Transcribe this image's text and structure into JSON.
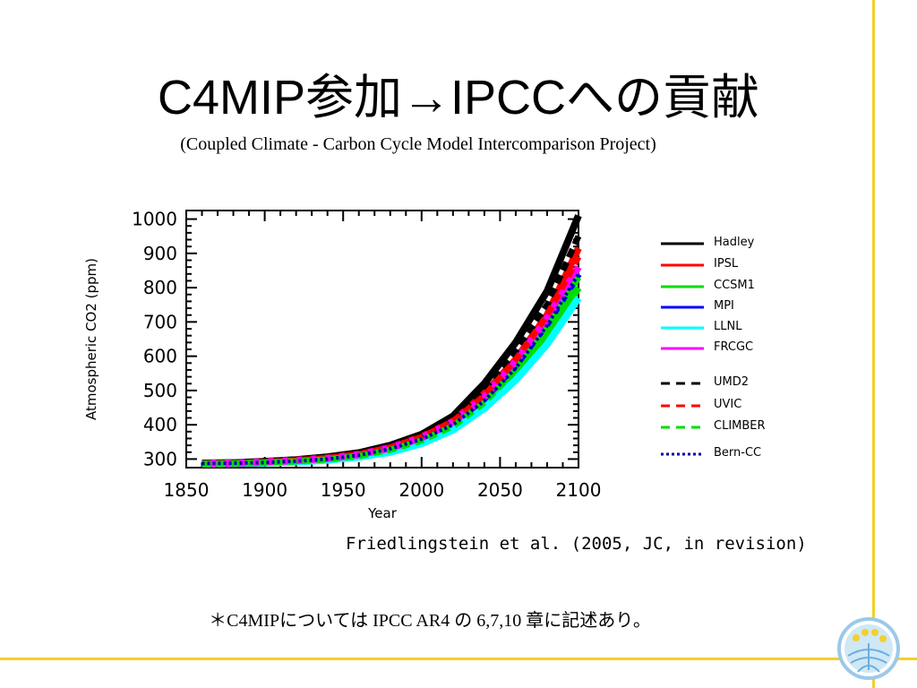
{
  "slide": {
    "title": "C4MIP参加→IPCCへの貢献",
    "subtitle": "(Coupled Climate - Carbon Cycle Model Intercomparison Project)",
    "citation": "Friedlingstein et al. (2005, JC, in revision)",
    "footnote": "＊C4MIPについては IPCC AR4 の 6,7,10 章に記述あり。",
    "accent_color": "#f3d02a"
  },
  "chart_data": {
    "type": "line",
    "xlabel": "Year",
    "ylabel": "Atmospheric CO2 (ppm)",
    "xlim": [
      1850,
      2100
    ],
    "ylim": [
      275,
      1025
    ],
    "xticks": [
      1850,
      1900,
      1950,
      2000,
      2050,
      2100
    ],
    "yticks": [
      300,
      400,
      500,
      600,
      700,
      800,
      900,
      1000
    ],
    "xtick_labels": [
      "1850",
      "1900",
      "1950",
      "2000",
      "2050",
      "2100"
    ],
    "ytick_labels": [
      "300",
      "400",
      "500",
      "600",
      "700",
      "800",
      "900",
      "1000"
    ],
    "grid": false,
    "legend_position": "right",
    "x": [
      1860,
      1880,
      1900,
      1920,
      1940,
      1960,
      1980,
      2000,
      2020,
      2040,
      2060,
      2080,
      2100
    ],
    "series": [
      {
        "name": "Hadley",
        "color": "#000000",
        "dash": "solid",
        "values": [
          288,
          289,
          293,
          298,
          306,
          318,
          340,
          372,
          425,
          520,
          640,
          790,
          1010
        ]
      },
      {
        "name": "IPSL",
        "color": "#ff0000",
        "dash": "solid",
        "values": [
          287,
          288,
          292,
          297,
          303,
          314,
          334,
          365,
          410,
          490,
          590,
          720,
          915
        ]
      },
      {
        "name": "CCSM1",
        "color": "#00dd00",
        "dash": "solid",
        "values": [
          286,
          287,
          289,
          292,
          298,
          308,
          324,
          350,
          390,
          455,
          545,
          660,
          800
        ]
      },
      {
        "name": "MPI",
        "color": "#0000ff",
        "dash": "solid",
        "values": [
          287,
          288,
          291,
          296,
          302,
          313,
          333,
          362,
          405,
          478,
          575,
          695,
          840
        ]
      },
      {
        "name": "LLNL",
        "color": "#00ffff",
        "dash": "solid",
        "values": [
          286,
          287,
          289,
          292,
          297,
          306,
          320,
          345,
          385,
          448,
          530,
          635,
          770
        ]
      },
      {
        "name": "FRCGC",
        "color": "#ff00ff",
        "dash": "solid",
        "values": [
          287,
          288,
          291,
          296,
          302,
          313,
          332,
          362,
          408,
          482,
          585,
          710,
          860
        ]
      },
      {
        "name": "UMD2",
        "color": "#000000",
        "dash": "dashed",
        "values": [
          288,
          289,
          293,
          298,
          305,
          317,
          338,
          370,
          420,
          505,
          615,
          750,
          950
        ]
      },
      {
        "name": "UVIC",
        "color": "#ff0000",
        "dash": "dashed",
        "values": [
          287,
          288,
          291,
          296,
          303,
          314,
          334,
          364,
          410,
          485,
          590,
          720,
          890
        ]
      },
      {
        "name": "CLIMBER",
        "color": "#00dd00",
        "dash": "dashed",
        "values": [
          286,
          287,
          290,
          293,
          299,
          309,
          327,
          354,
          396,
          465,
          560,
          680,
          830
        ]
      },
      {
        "name": "Bern-CC",
        "color": "#0000aa",
        "dash": "dotted",
        "values": [
          287,
          288,
          290,
          294,
          300,
          311,
          330,
          358,
          400,
          470,
          565,
          690,
          840
        ]
      }
    ]
  }
}
